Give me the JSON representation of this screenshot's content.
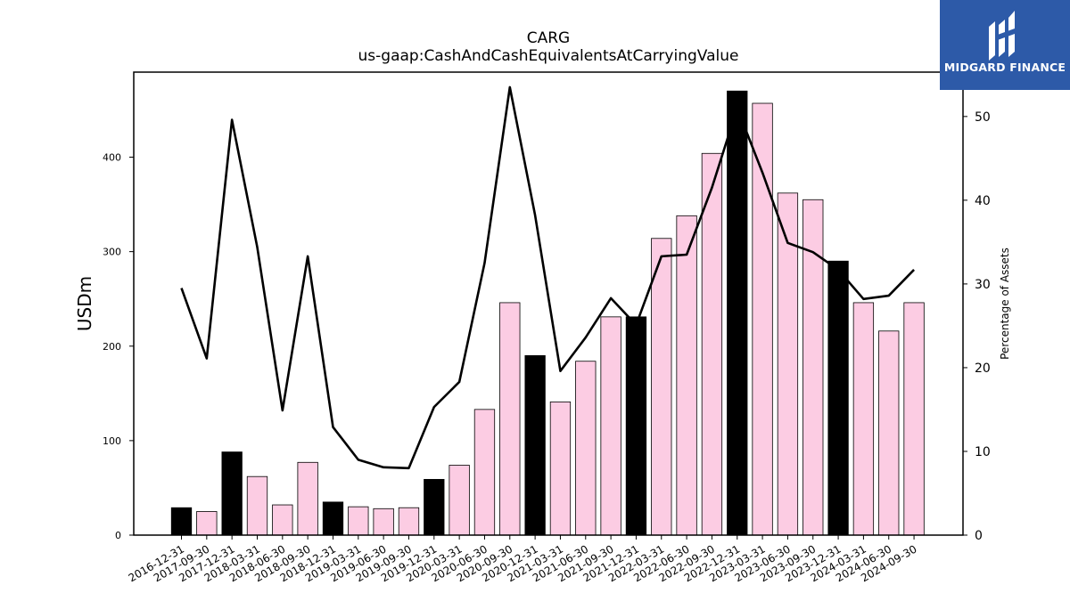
{
  "title": "CARG",
  "subtitle": "us-gaap:CashAndCashEquivalentsAtCarryingValue",
  "logo": {
    "text": "MIDGARD FINANCE",
    "background": "#2d5aa8",
    "icon": "midgard-logo-icon"
  },
  "chart_data": {
    "type": "bar",
    "title": "CARG",
    "subtitle": "us-gaap:CashAndCashEquivalentsAtCarryingValue",
    "ylabel": "USDm",
    "y2label": "Percentage of Assets",
    "ylim": [
      0,
      490
    ],
    "y2lim": [
      0,
      55.3
    ],
    "yticks": [
      0,
      100,
      200,
      300,
      400
    ],
    "y2ticks": [
      0,
      10,
      20,
      30,
      40,
      50
    ],
    "grid": false,
    "categories": [
      "2016-12-31",
      "2017-09-30",
      "2017-12-31",
      "2018-03-31",
      "2018-06-30",
      "2018-09-30",
      "2018-12-31",
      "2019-03-31",
      "2019-06-30",
      "2019-09-30",
      "2019-12-31",
      "2020-03-31",
      "2020-06-30",
      "2020-09-30",
      "2020-12-31",
      "2021-03-31",
      "2021-06-30",
      "2021-09-30",
      "2021-12-31",
      "2022-03-31",
      "2022-06-30",
      "2022-09-30",
      "2022-12-31",
      "2023-03-31",
      "2023-06-30",
      "2023-09-30",
      "2023-12-31",
      "2024-03-31",
      "2024-06-30",
      "2024-09-30"
    ],
    "series": [
      {
        "kind": "bar",
        "axis": "left",
        "values": [
          29,
          25,
          88,
          62,
          32,
          77,
          35,
          30,
          28,
          29,
          59,
          74,
          133,
          246,
          190,
          141,
          184,
          231,
          231,
          314,
          338,
          404,
          470,
          457,
          362,
          355,
          290,
          246,
          216,
          246
        ],
        "year_end_color": "#000000",
        "other_color": "#fccce3"
      },
      {
        "kind": "line",
        "axis": "right",
        "color": "#000000",
        "values": [
          29.5,
          21.1,
          49.6,
          34.4,
          14.9,
          33.3,
          12.9,
          9.0,
          8.1,
          8.0,
          15.3,
          18.3,
          32.5,
          53.5,
          38.2,
          19.6,
          23.6,
          28.3,
          25.1,
          33.3,
          33.5,
          41.5,
          51.0,
          43.3,
          34.9,
          33.8,
          31.7,
          28.2,
          28.6,
          31.7
        ]
      }
    ]
  }
}
